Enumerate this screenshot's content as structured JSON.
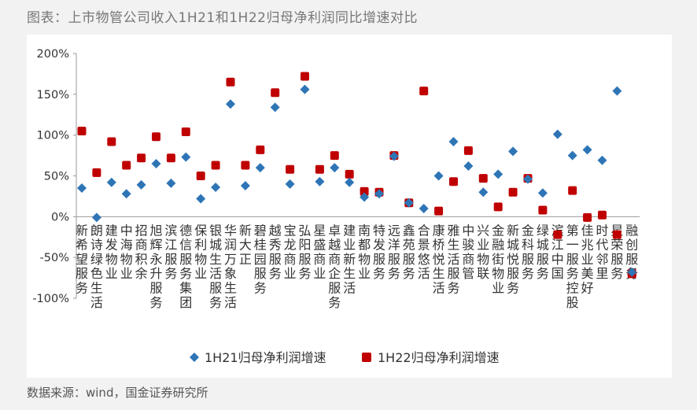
{
  "title": "图表：上市物管公司收入1H21和1H22归母净利润同比增速对比",
  "source": "数据来源：wind，国金证券研究所",
  "chart_data": {
    "type": "scatter",
    "title": "",
    "ylim": [
      -100,
      200
    ],
    "yticks": [
      -100,
      -50,
      0,
      50,
      100,
      150,
      200
    ],
    "ytick_labels": [
      "-100%",
      "-50%",
      "0%",
      "50%",
      "100%",
      "150%",
      "200%"
    ],
    "categories": [
      "新希望服务",
      "朗诗绿色生活",
      "建发物业",
      "中海物业",
      "招商积余",
      "旭辉永升服务",
      "滨江服务",
      "德信服务集团",
      "保利物业",
      "银城生活服务",
      "华润万象生活",
      "新大正",
      "碧桂园服务",
      "越秀服务",
      "宝龙商业",
      "弘阳服务",
      "星盛商业",
      "卓越商企服务",
      "建业新生活",
      "南都物业",
      "特发服务",
      "远洋服务",
      "鑫苑服务",
      "合景悠活",
      "康桥悦生活",
      "雅生活服务",
      "中骏商管",
      "兴业物联",
      "金融街物业",
      "新城悦服务",
      "金科服务",
      "绿城服务",
      "滨江中国",
      "第一服务控股",
      "佳兆业美好",
      "时代邻里",
      "星荣服务",
      "融创服务"
    ],
    "series": [
      {
        "name": "1H21归母净利润增速",
        "color": "#2e75b6",
        "marker": "diamond",
        "values": [
          35,
          -1,
          42,
          28,
          39,
          65,
          41,
          73,
          22,
          36,
          138,
          38,
          60,
          134,
          40,
          156,
          43,
          60,
          42,
          24,
          28,
          74,
          17,
          10,
          50,
          92,
          62,
          30,
          52,
          80,
          46,
          29,
          101,
          75,
          82,
          69,
          154,
          -68
        ]
      },
      {
        "name": "1H22归母净利润增速",
        "color": "#c00000",
        "marker": "square",
        "values": [
          105,
          54,
          92,
          63,
          72,
          98,
          72,
          104,
          50,
          63,
          165,
          63,
          82,
          152,
          58,
          172,
          58,
          75,
          52,
          31,
          30,
          75,
          17,
          154,
          7,
          43,
          81,
          47,
          12,
          30,
          47,
          8,
          -22,
          32,
          -1,
          2,
          -22,
          -70
        ]
      }
    ],
    "legend_position": "bottom",
    "grid": false
  }
}
